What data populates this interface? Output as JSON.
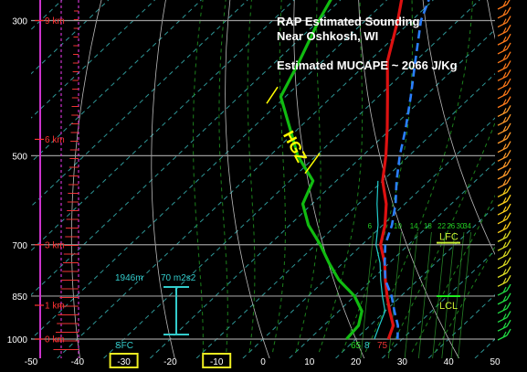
{
  "header": {
    "title_line1": "RAP Estimated Sounding",
    "title_line2": "Near Oshkosh, WI",
    "mucape": "Estimated MUCAPE ~ 2066 J/Kg"
  },
  "chart_data": {
    "type": "skew-t",
    "xlim": [
      -50,
      50
    ],
    "x_ticks": [
      "-50",
      "-40",
      "-30",
      "-20",
      "-10",
      "0",
      "10",
      "20",
      "30",
      "40",
      "50"
    ],
    "highlighted_x_ticks": [
      "-30",
      "-10"
    ],
    "pressure_ticks": [
      "300",
      "500",
      "700",
      "850",
      "1000"
    ],
    "height_labels": [
      "9 km",
      "6 km",
      "3 km",
      "1 km",
      "0 km"
    ],
    "height_pressures": [
      300,
      470,
      700,
      880,
      1000
    ],
    "mixing_ratio_labels": [
      "6",
      "10",
      "14",
      "18",
      "22",
      "26",
      "30",
      "34"
    ],
    "mixing_ratio_x": [
      -2,
      4,
      7.5,
      10.5,
      13.5,
      15.5,
      17.5,
      19
    ],
    "temperature_profile": [
      {
        "p": 180,
        "t": -56
      },
      {
        "p": 200,
        "t": -57
      },
      {
        "p": 250,
        "t": -52
      },
      {
        "p": 300,
        "t": -43
      },
      {
        "p": 350,
        "t": -36
      },
      {
        "p": 400,
        "t": -28
      },
      {
        "p": 450,
        "t": -21
      },
      {
        "p": 500,
        "t": -15
      },
      {
        "p": 550,
        "t": -10
      },
      {
        "p": 600,
        "t": -4
      },
      {
        "p": 650,
        "t": 0.5
      },
      {
        "p": 700,
        "t": 4
      },
      {
        "p": 750,
        "t": 9
      },
      {
        "p": 800,
        "t": 13
      },
      {
        "p": 850,
        "t": 17
      },
      {
        "p": 900,
        "t": 21
      },
      {
        "p": 950,
        "t": 25
      },
      {
        "p": 1000,
        "t": 27
      }
    ],
    "dewpoint_profile": [
      {
        "p": 180,
        "t": -59
      },
      {
        "p": 200,
        "t": -62
      },
      {
        "p": 250,
        "t": -65
      },
      {
        "p": 300,
        "t": -60
      },
      {
        "p": 350,
        "t": -55
      },
      {
        "p": 400,
        "t": -51
      },
      {
        "p": 450,
        "t": -42
      },
      {
        "p": 500,
        "t": -34
      },
      {
        "p": 550,
        "t": -25
      },
      {
        "p": 600,
        "t": -22
      },
      {
        "p": 650,
        "t": -16
      },
      {
        "p": 700,
        "t": -9
      },
      {
        "p": 750,
        "t": -3
      },
      {
        "p": 800,
        "t": 3
      },
      {
        "p": 850,
        "t": 10
      },
      {
        "p": 900,
        "t": 15
      },
      {
        "p": 950,
        "t": 17.5
      },
      {
        "p": 1000,
        "t": 18
      }
    ],
    "parcel_profile": [
      {
        "p": 180,
        "t": -52
      },
      {
        "p": 200,
        "t": -50
      },
      {
        "p": 250,
        "t": -45
      },
      {
        "p": 300,
        "t": -38
      },
      {
        "p": 350,
        "t": -30
      },
      {
        "p": 400,
        "t": -23
      },
      {
        "p": 450,
        "t": -17
      },
      {
        "p": 500,
        "t": -12
      },
      {
        "p": 550,
        "t": -7
      },
      {
        "p": 600,
        "t": -2
      },
      {
        "p": 650,
        "t": 2
      },
      {
        "p": 700,
        "t": 5
      },
      {
        "p": 750,
        "t": 9
      },
      {
        "p": 800,
        "t": 13
      },
      {
        "p": 850,
        "t": 18
      },
      {
        "p": 900,
        "t": 22
      },
      {
        "p": 950,
        "t": 26
      },
      {
        "p": 1000,
        "t": 29
      }
    ],
    "virtual_temperature_profile": [
      {
        "p": 550,
        "t": -11
      },
      {
        "p": 600,
        "t": -6
      },
      {
        "p": 650,
        "t": -1
      },
      {
        "p": 700,
        "t": 3
      },
      {
        "p": 750,
        "t": 8
      },
      {
        "p": 800,
        "t": 12
      },
      {
        "p": 850,
        "t": 16
      },
      {
        "p": 900,
        "t": 20
      },
      {
        "p": 950,
        "t": 22
      },
      {
        "p": 1000,
        "t": 24
      }
    ],
    "hgz_label": "HGZ",
    "hgz_pressure_range": [
      370,
      520
    ],
    "lfc": {
      "label": "LFC",
      "pressure": 690
    },
    "lcl": {
      "label": "LCL",
      "pressure": 880
    },
    "effective_inflow": {
      "height": "1946m",
      "srh": "70 m2s2",
      "top_p": 790,
      "bottom_p": 985
    },
    "sfc_label": "SFC",
    "surface_readout": {
      "td": "65",
      "sep": "8",
      "t": "75"
    },
    "colors": {
      "background": "#000000",
      "temperature": "#dd1111",
      "dewpoint": "#11bb11",
      "parcel": "#2a7fff",
      "virtual": "#22cccc",
      "isobar": "#9a9a9a",
      "isotherm": "#3ec9c9",
      "moist_adiabat": "#1f8f1f",
      "mixing_ratio": "#2f9f2f",
      "km": "#ff3333",
      "hgz": "#ffff00",
      "lfc_lcl": "#ccee33",
      "inflow": "#33cccc",
      "highlight_box": "#eeee22"
    }
  }
}
